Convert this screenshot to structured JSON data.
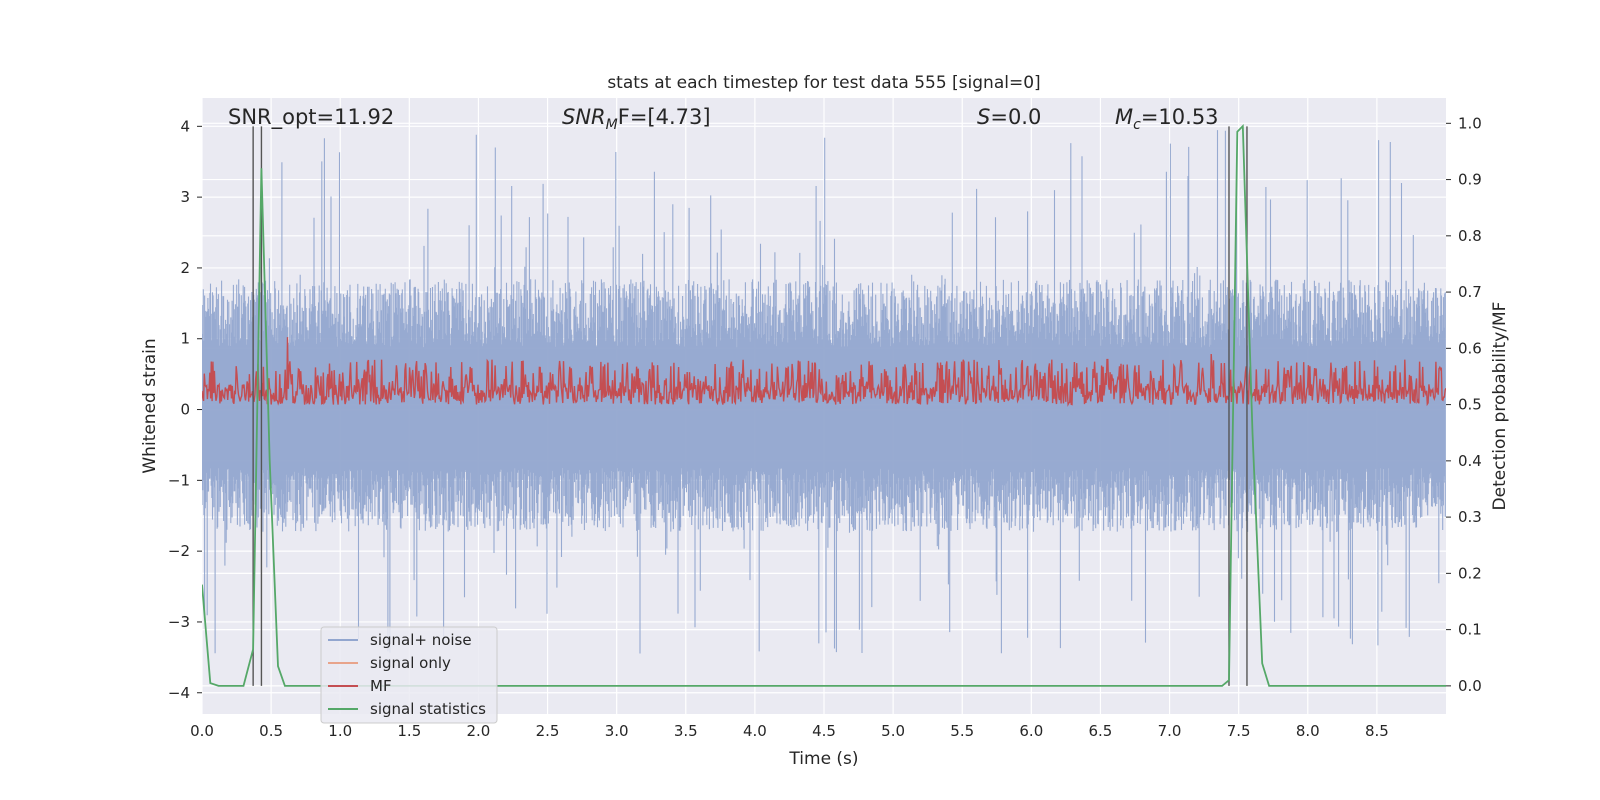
{
  "chart_data": {
    "type": "line",
    "title": "stats at each timestep for test data 555 [signal=0]",
    "xlabel": "Time (s)",
    "ylabel_left": "Whitened strain",
    "ylabel_right": "Detection probability/MF",
    "xlim": [
      0.0,
      9.0
    ],
    "ylim_left": [
      -4.3,
      4.4
    ],
    "ylim_right": [
      -0.05,
      1.045
    ],
    "x_ticks": [
      "0.0",
      "0.5",
      "1.0",
      "1.5",
      "2.0",
      "2.5",
      "3.0",
      "3.5",
      "4.0",
      "4.5",
      "5.0",
      "5.5",
      "6.0",
      "6.5",
      "7.0",
      "7.5",
      "8.0",
      "8.5"
    ],
    "y_ticks_left": [
      "4",
      "3",
      "2",
      "1",
      "0",
      "−1",
      "−2",
      "−3",
      "−4"
    ],
    "y_ticks_right": [
      "1.0",
      "0.9",
      "0.8",
      "0.7",
      "0.6",
      "0.5",
      "0.4",
      "0.3",
      "0.2",
      "0.1",
      "0.0"
    ],
    "grid": true,
    "legend_position": "lower-left",
    "annotations": {
      "snr_opt": "SNR_opt=11.92",
      "snr_mf_base": "SNR",
      "snr_mf_sub": "M",
      "snr_mf_tail": "F=[4.73]",
      "s_italic": "S",
      "s_value": "=0.0",
      "mc_base": "M",
      "mc_sub": "c",
      "mc_value": "=10.53"
    },
    "vertical_lines_x": [
      0.37,
      0.43,
      7.43,
      7.56
    ],
    "series": [
      {
        "name": "signal+ noise",
        "color": "#92a6cf",
        "axis": "left",
        "envelope_note": "dense whitened noise, amplitude ~±1.6 typical, peaks ~±3.5",
        "band_typical": [
          -1.5,
          1.6
        ],
        "band_peaks": [
          -3.5,
          4.0
        ]
      },
      {
        "name": "signal only",
        "color": "#e8a48b",
        "axis": "left",
        "values": []
      },
      {
        "name": "MF",
        "color": "#c44e52",
        "axis": "right",
        "band": [
          0.5,
          0.58
        ],
        "spikes": [
          [
            0.62,
            0.62
          ],
          [
            7.3,
            0.59
          ],
          [
            6.55,
            0.58
          ]
        ]
      },
      {
        "name": "signal statistics",
        "color": "#55a868",
        "axis": "right",
        "x": [
          0.0,
          0.06,
          0.12,
          0.3,
          0.37,
          0.43,
          0.49,
          0.55,
          0.6,
          0.75,
          0.8,
          7.3,
          7.38,
          7.43,
          7.49,
          7.53,
          7.6,
          7.67,
          7.72,
          9.0
        ],
        "values": [
          0.18,
          0.005,
          0.0,
          0.0,
          0.065,
          0.92,
          0.4,
          0.035,
          0.0,
          0.0,
          0.0,
          0.0,
          0.0,
          0.01,
          0.985,
          0.995,
          0.45,
          0.04,
          0.0,
          0.0
        ]
      }
    ]
  }
}
